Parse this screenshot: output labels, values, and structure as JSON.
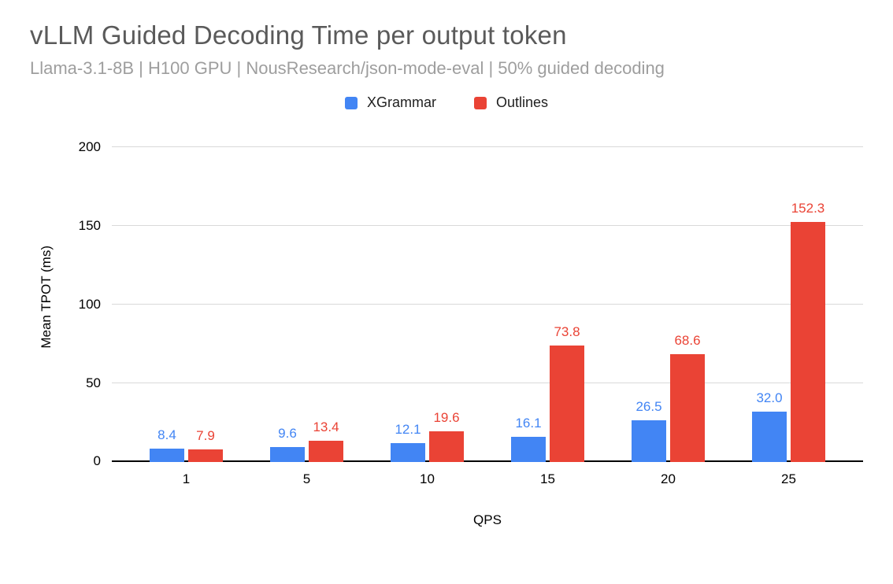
{
  "header": {
    "title": "vLLM Guided Decoding Time per output token",
    "subtitle": "Llama-3.1-8B | H100 GPU | NousResearch/json-mode-eval | 50% guided decoding"
  },
  "chart_data": {
    "type": "bar",
    "title": "vLLM Guided Decoding Time per output token",
    "subtitle": "Llama-3.1-8B | H100 GPU | NousResearch/json-mode-eval | 50% guided decoding",
    "categories": [
      "1",
      "5",
      "10",
      "15",
      "20",
      "25"
    ],
    "series": [
      {
        "name": "XGrammar",
        "color": "#4285F4",
        "values": [
          8.4,
          9.6,
          12.1,
          16.1,
          26.5,
          32.0
        ]
      },
      {
        "name": "Outlines",
        "color": "#EA4335",
        "values": [
          7.9,
          13.4,
          19.6,
          73.8,
          68.6,
          152.3
        ]
      }
    ],
    "xlabel": "QPS",
    "ylabel": "Mean TPOT (ms)",
    "ylim": [
      0,
      200
    ],
    "ytick_step": 50,
    "grid": true,
    "legend_position": "top",
    "value_labels": true
  }
}
